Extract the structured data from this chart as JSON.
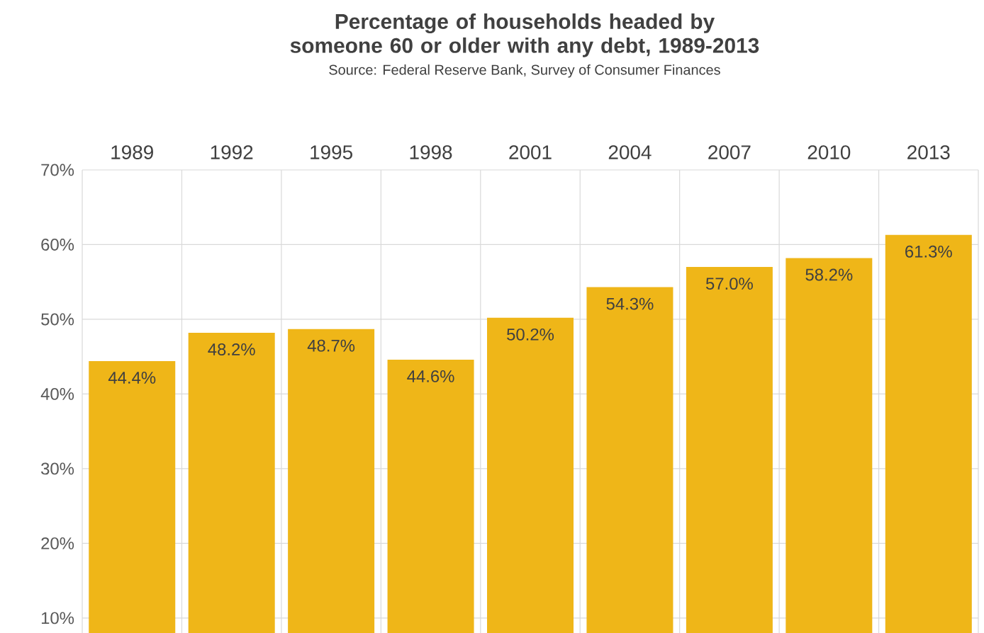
{
  "chart_data": {
    "type": "bar",
    "title": "Percentage of households headed by someone 60 or older with any debt, 1989-2013",
    "subtitle": "Source: Federal Reserve Bank, Survey of Consumer Finances",
    "categories": [
      "1989",
      "1992",
      "1995",
      "1998",
      "2001",
      "2004",
      "2007",
      "2010",
      "2013"
    ],
    "values": [
      44.4,
      48.2,
      48.7,
      44.6,
      50.2,
      54.3,
      57.0,
      58.2,
      61.3
    ],
    "value_labels": [
      "44.4%",
      "48.2%",
      "48.7%",
      "44.6%",
      "50.2%",
      "54.3%",
      "57.0%",
      "58.2%",
      "61.3%"
    ],
    "color": "#efb618",
    "ylim": [
      8,
      70
    ],
    "yticks": [
      {
        "value": 10,
        "label": "10%"
      },
      {
        "value": 20,
        "label": "20%"
      },
      {
        "value": 30,
        "label": "30%"
      },
      {
        "value": 40,
        "label": "40%"
      },
      {
        "value": 50,
        "label": "50%"
      },
      {
        "value": 60,
        "label": "60%"
      },
      {
        "value": 70,
        "label": "70%"
      }
    ],
    "grid": true
  }
}
